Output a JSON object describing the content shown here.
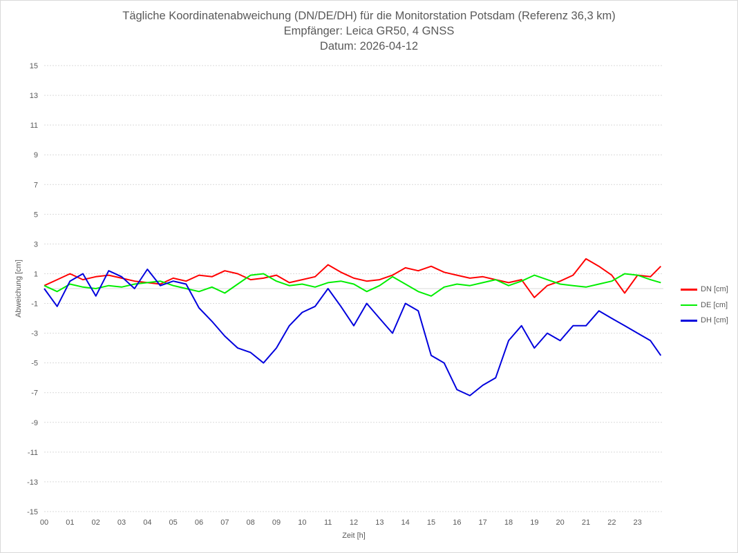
{
  "chart_data": {
    "type": "line",
    "title": "Tägliche Koordinatenabweichung (DN/DE/DH) für die Monitorstation Potsdam (Referenz 36,3 km)",
    "subtitle": "Empfänger: Leica GR50, 4 GNSS",
    "date_line": "Datum: 2026-04-12",
    "xlabel": "Zeit [h]",
    "ylabel": "Abweichung [cm]",
    "ylim": [
      -15,
      15
    ],
    "y_ticks": [
      15,
      13,
      11,
      9,
      7,
      5,
      3,
      1,
      -1,
      -3,
      -5,
      -7,
      -9,
      -11,
      -13,
      -15
    ],
    "xlim": [
      0,
      24
    ],
    "x_tick_labels": [
      "00",
      "01",
      "02",
      "03",
      "04",
      "05",
      "06",
      "07",
      "08",
      "09",
      "10",
      "11",
      "12",
      "13",
      "14",
      "15",
      "16",
      "17",
      "18",
      "19",
      "20",
      "21",
      "22",
      "23"
    ],
    "grid": "horizontal dotted",
    "legend_position": "right",
    "series": [
      {
        "name": "DN [cm]",
        "color": "#ff0000",
        "x": [
          0,
          0.5,
          1,
          1.5,
          2,
          2.5,
          3,
          3.5,
          4,
          4.5,
          5,
          5.5,
          6,
          6.5,
          7,
          7.5,
          8,
          8.5,
          9,
          9.5,
          10,
          10.5,
          11,
          11.5,
          12,
          12.5,
          13,
          13.5,
          14,
          14.5,
          15,
          15.5,
          16,
          16.5,
          17,
          17.5,
          18,
          18.5,
          19,
          19.5,
          20,
          20.5,
          21,
          21.5,
          22,
          22.5,
          23,
          23.5,
          23.9
        ],
        "y": [
          0.2,
          0.6,
          1.0,
          0.6,
          0.8,
          0.9,
          0.7,
          0.5,
          0.4,
          0.3,
          0.7,
          0.5,
          0.9,
          0.8,
          1.2,
          1.0,
          0.6,
          0.7,
          0.9,
          0.4,
          0.6,
          0.8,
          1.6,
          1.1,
          0.7,
          0.5,
          0.6,
          0.9,
          1.4,
          1.2,
          1.5,
          1.1,
          0.9,
          0.7,
          0.8,
          0.6,
          0.4,
          0.6,
          -0.6,
          0.2,
          0.5,
          0.9,
          2.0,
          1.5,
          0.9,
          -0.3,
          0.9,
          0.8,
          1.5
        ]
      },
      {
        "name": "DE [cm]",
        "color": "#00ee00",
        "x": [
          0,
          0.5,
          1,
          1.5,
          2,
          2.5,
          3,
          3.5,
          4,
          4.5,
          5,
          5.5,
          6,
          6.5,
          7,
          7.5,
          8,
          8.5,
          9,
          9.5,
          10,
          10.5,
          11,
          11.5,
          12,
          12.5,
          13,
          13.5,
          14,
          14.5,
          15,
          15.5,
          16,
          16.5,
          17,
          17.5,
          18,
          18.5,
          19,
          19.5,
          20,
          20.5,
          21,
          21.5,
          22,
          22.5,
          23,
          23.5,
          23.9
        ],
        "y": [
          0.2,
          -0.2,
          0.3,
          0.1,
          0.0,
          0.2,
          0.1,
          0.3,
          0.4,
          0.5,
          0.2,
          0.0,
          -0.2,
          0.1,
          -0.3,
          0.3,
          0.9,
          1.0,
          0.5,
          0.2,
          0.3,
          0.1,
          0.4,
          0.5,
          0.3,
          -0.2,
          0.2,
          0.8,
          0.3,
          -0.2,
          -0.5,
          0.1,
          0.3,
          0.2,
          0.4,
          0.6,
          0.2,
          0.5,
          0.9,
          0.6,
          0.3,
          0.2,
          0.1,
          0.3,
          0.5,
          1.0,
          0.9,
          0.6,
          0.4
        ]
      },
      {
        "name": "DH [cm]",
        "color": "#0000dd",
        "x": [
          0,
          0.5,
          1,
          1.5,
          2,
          2.5,
          3,
          3.5,
          4,
          4.5,
          5,
          5.5,
          6,
          6.5,
          7,
          7.5,
          8,
          8.5,
          9,
          9.5,
          10,
          10.5,
          11,
          11.5,
          12,
          12.5,
          13,
          13.5,
          14,
          14.5,
          15,
          15.5,
          16,
          16.5,
          17,
          17.5,
          18,
          18.5,
          19,
          19.5,
          20,
          20.5,
          21,
          21.5,
          22,
          22.5,
          23,
          23.5,
          23.9
        ],
        "y": [
          0.0,
          -1.2,
          0.5,
          1.0,
          -0.5,
          1.2,
          0.8,
          0.0,
          1.3,
          0.2,
          0.5,
          0.3,
          -1.3,
          -2.2,
          -3.2,
          -4.0,
          -4.3,
          -5.0,
          -4.0,
          -2.5,
          -1.6,
          -1.2,
          0.0,
          -1.2,
          -2.5,
          -1.0,
          -2.0,
          -3.0,
          -1.0,
          -1.5,
          -4.5,
          -5.0,
          -6.8,
          -7.2,
          -6.5,
          -6.0,
          -3.5,
          -2.5,
          -4.0,
          -3.0,
          -3.5,
          -2.5,
          -2.5,
          -1.5,
          -2.0,
          -2.5,
          -3.0,
          -3.5,
          -4.5
        ]
      }
    ]
  }
}
